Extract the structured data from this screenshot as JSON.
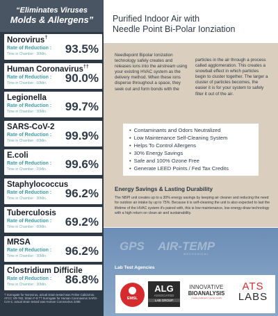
{
  "header": {
    "line1": "“Eliminates Viruses",
    "line2": "Molds & Allergens”"
  },
  "results": [
    {
      "name": "Norovirus",
      "mark": "†",
      "rate_label": "Rate of Reduction :",
      "time": "Time in Chamber : 30Min.",
      "value": "93.5%"
    },
    {
      "name": "Human Coronavirus",
      "mark": "††",
      "rate_label": "Rate of Reduction :",
      "time": "Time in Chamber : 60Min.",
      "value": "90.0%"
    },
    {
      "name": "Legionella",
      "mark": "",
      "rate_label": "Rate of Reduction :",
      "time": "Time in Chamber : 30Min.",
      "value": "99.7%"
    },
    {
      "name": "SARS-CoV-2",
      "mark": "",
      "rate_label": "Rate of Reduction :",
      "time": "Time in Chamber : 60Min.",
      "value": "99.9%"
    },
    {
      "name": "E.coli",
      "mark": "",
      "rate_label": "Rate of Reduction :",
      "time": "Time in Chamber : 15Min.",
      "value": "99.6%"
    },
    {
      "name": "Staphylococcus",
      "mark": "",
      "rate_label": "Rate of Reduction :",
      "time": "Time in Chamber : 30Min.",
      "value": "96.2%"
    },
    {
      "name": "Tuberculosis",
      "mark": "",
      "rate_label": "Rate of Reduction :",
      "time": "Time in Chamber : 60Min.",
      "value": "69.2%"
    },
    {
      "name": "MRSA",
      "mark": "",
      "rate_label": "Rate of Reduction :",
      "time": "Time in Chamber : 30Min.",
      "value": "96.2%"
    },
    {
      "name": "Clostridium Difficile",
      "mark": "",
      "rate_label": "Rate of Reduction :",
      "time": "Time in Chamber : 30Min.",
      "value": "86.8%"
    }
  ],
  "footnote": "† Surrogate for Norovirus, actual strain tested was Feline Calicivirus, ATCC VR-782, Strain F-9 †† Surrogate for Human Coronavirus SARS-CoV-2, actual strain tested was Human Coronavirus 229E",
  "title": {
    "line1": "Purified Indoor Air with",
    "line2": "Needle Point Bi-Polar Ionziation"
  },
  "intro": {
    "col1": "Needlepoint Bipolar Ionization technology safely creates and releases ions into the airstream using your existing HVAC system as the delivery method. When these ions disperse throughout a space, they seek out and form bonds with the",
    "col2": "particles in the air through a process called agglomeration. This creates a snowball effect in which particles begin to cluster together. The larger a cluster of particles becomes, the easier it is for your system to safely filter it out of the air."
  },
  "benefits": [
    "Contaminants and Odors Neutralized",
    "Low Maintenance Self-Cleaning System",
    "Helps To Control Allergens",
    "30% Energy Savings",
    "Safe and 100% Ozone Free",
    "Generate LEED Points / Fed Tax Credits"
  ],
  "energy": {
    "title": "Energy Savings & Lasting Durability",
    "body": "The NBPI unit creates up to a 30% energy savings by keeping air cleaner and reducing the need for outdoor air intake by up to 75%. Because it is self-cleaning the unit is also expected to last the lifetime of the HVAC system it's paired with, this is low maintenance, low energy-draw technology with a high return on clean air and sustainability."
  },
  "watermark": {
    "gps": "GPS",
    "air": "AIR-TEMP",
    "sub": "MECHANICAL"
  },
  "labs": {
    "title": "Lab Test Agencies",
    "emsl": "EMSL",
    "alg": {
      "l1": "ALG",
      "l2": "ASSOCIATED",
      "l3": "LAB GROUP"
    },
    "ib": {
      "l1": "INNOVATIVE",
      "l2": "BIOANALYSIS",
      "l3": "creating solutions • giving results"
    },
    "ats": {
      "l1": "ATS",
      "l2": "LABS"
    }
  },
  "colors": {
    "dark": "#2e3946",
    "teal": "#3f9aa5",
    "tan": "#dacfbe",
    "red": "#d52b2f"
  }
}
